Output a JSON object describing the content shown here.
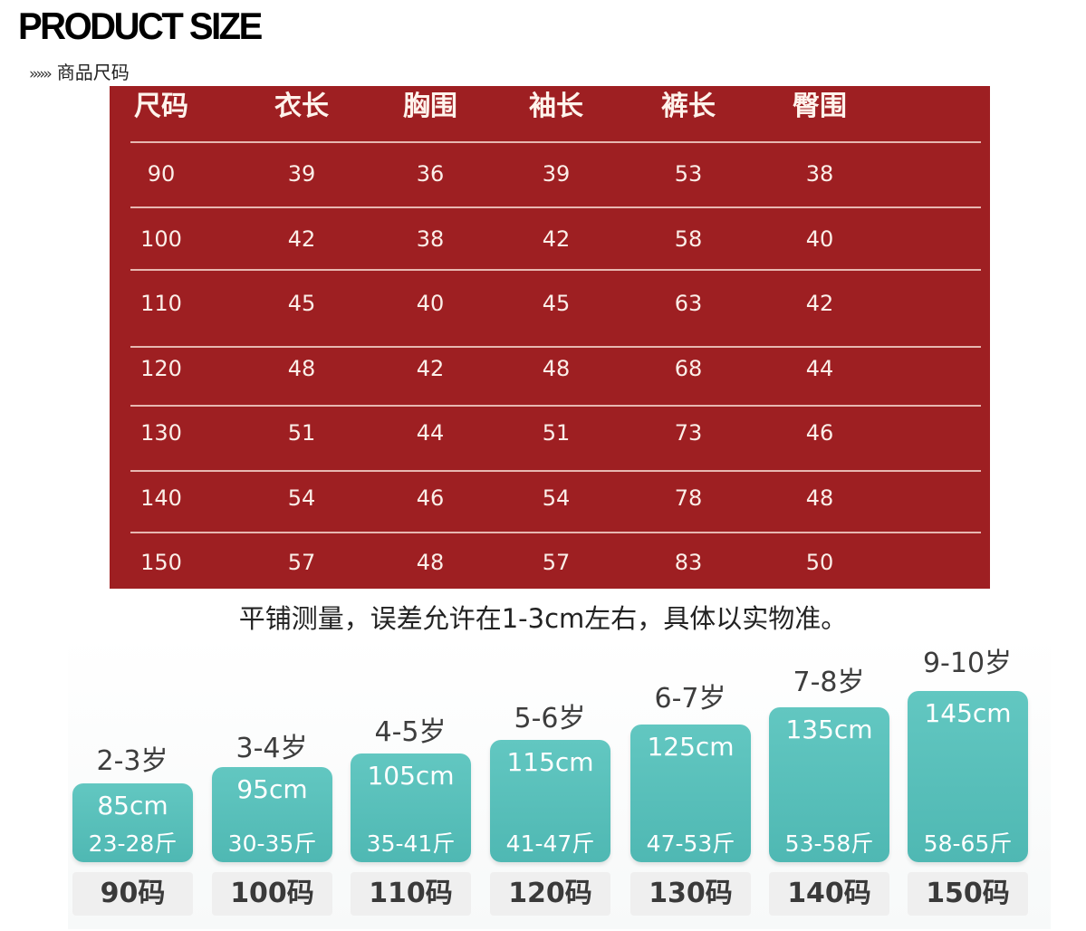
{
  "header": {
    "title": "PRODUCT SIZE",
    "arrows": "››››››",
    "subtitle": "商品尺码"
  },
  "size_table": {
    "columns": [
      "尺码",
      "衣长",
      "胸围",
      "袖长",
      "裤长",
      "臀围"
    ],
    "rows": [
      [
        "90",
        "39",
        "36",
        "39",
        "53",
        "38"
      ],
      [
        "100",
        "42",
        "38",
        "42",
        "58",
        "40"
      ],
      [
        "110",
        "45",
        "40",
        "45",
        "63",
        "42"
      ],
      [
        "120",
        "48",
        "42",
        "48",
        "68",
        "44"
      ],
      [
        "130",
        "51",
        "44",
        "51",
        "73",
        "46"
      ],
      [
        "140",
        "54",
        "46",
        "54",
        "78",
        "48"
      ],
      [
        "150",
        "57",
        "48",
        "57",
        "83",
        "50"
      ]
    ]
  },
  "note": "平铺测量，误差允许在1-3cm左右，具体以实物准。",
  "size_guide": [
    {
      "age": "2-3岁",
      "height": "85cm",
      "weight": "23-28斤",
      "size": "90码"
    },
    {
      "age": "3-4岁",
      "height": "95cm",
      "weight": "30-35斤",
      "size": "100码"
    },
    {
      "age": "4-5岁",
      "height": "105cm",
      "weight": "35-41斤",
      "size": "110码"
    },
    {
      "age": "5-6岁",
      "height": "115cm",
      "weight": "41-47斤",
      "size": "120码"
    },
    {
      "age": "6-7岁",
      "height": "125cm",
      "weight": "47-53斤",
      "size": "130码"
    },
    {
      "age": "7-8岁",
      "height": "135cm",
      "weight": "53-58斤",
      "size": "140码"
    },
    {
      "age": "9-10岁",
      "height": "145cm",
      "weight": "58-65斤",
      "size": "150码"
    }
  ],
  "colors": {
    "table_bg": "#9e1f22",
    "bar": "#56bdb8",
    "pill": "#efefef"
  }
}
